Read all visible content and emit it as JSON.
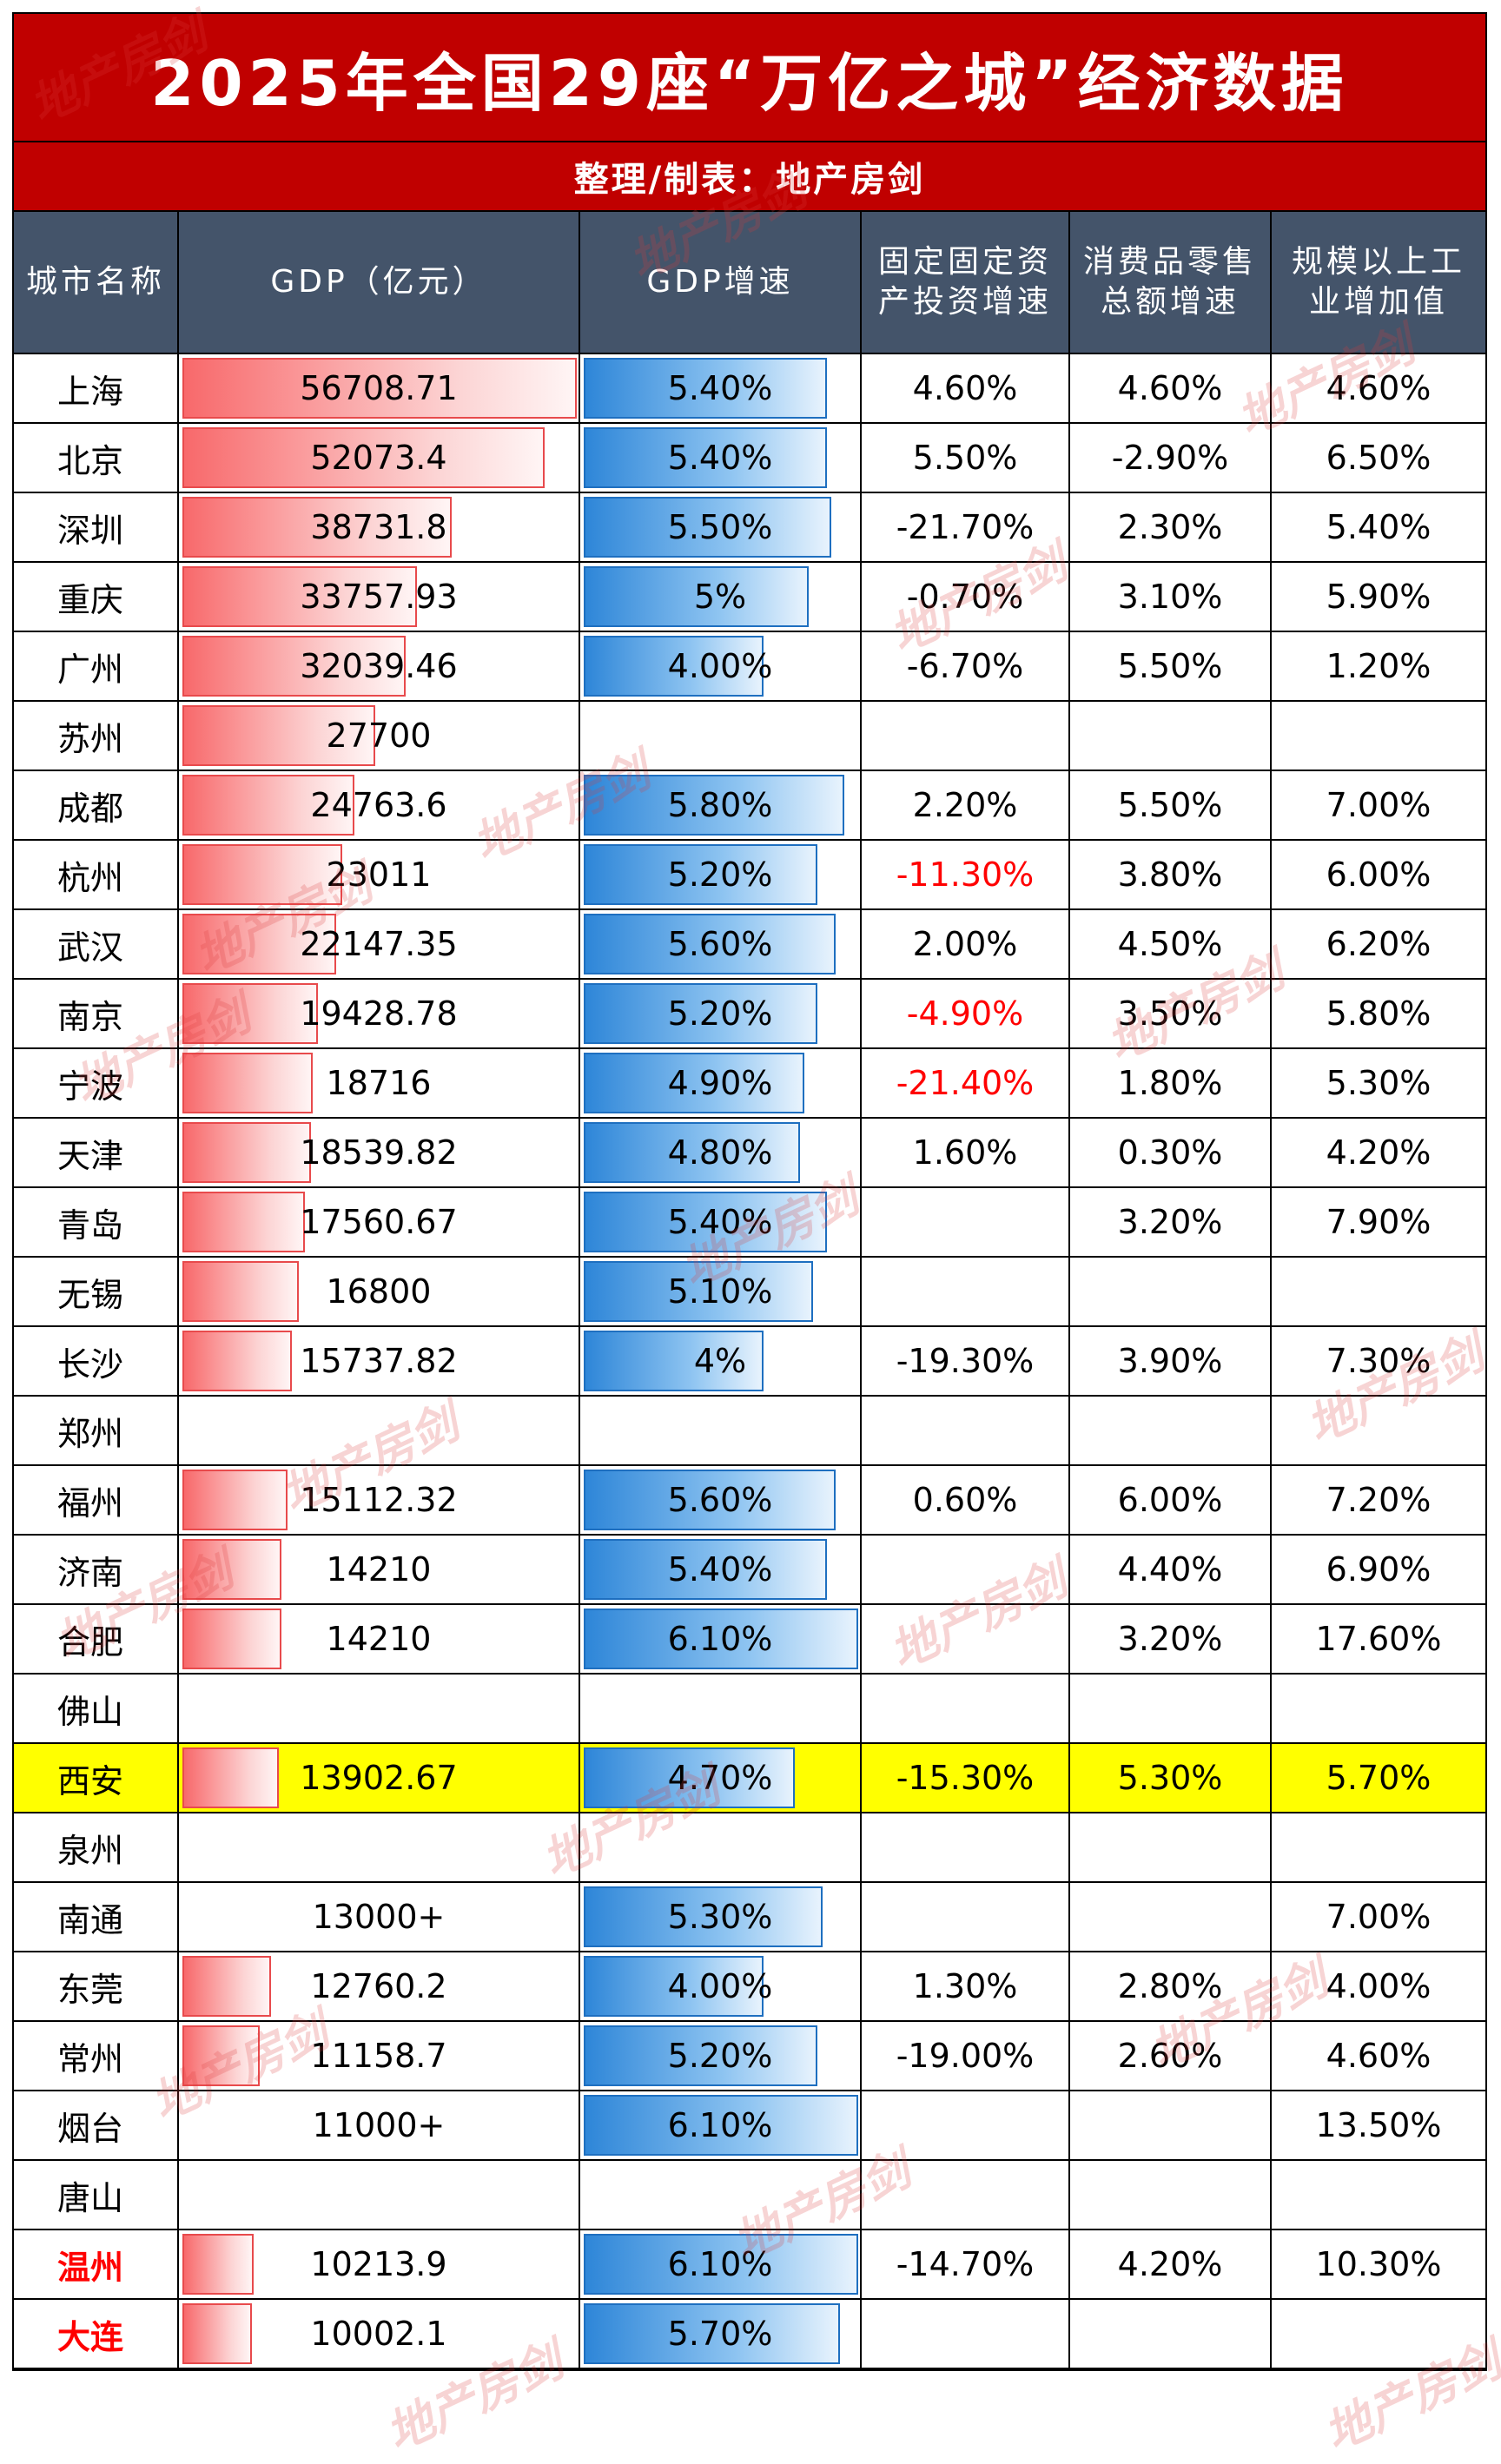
{
  "title": "2025年全国29座“万亿之城”经济数据",
  "subtitle": "整理/制表：地产房剑",
  "watermark": "地产房剑",
  "colors": {
    "title_bg": "#c00000",
    "header_bg": "#44546a",
    "highlight": "#ffff00",
    "gdp_bar": "#f8696b",
    "growth_bar": "#2e86d8",
    "negative_text": "#ff0000"
  },
  "headers": {
    "city": "城市名称",
    "gdp": "GDP（亿元）",
    "gdp_growth": "GDP增速",
    "fai_growth": "固定固定资产投资增速",
    "retail_growth": "消费品零售总额增速",
    "industry": "规模以上工业增加值"
  },
  "rows": [
    {
      "city": "上海",
      "gdp": "56708.71",
      "gdp_value": 56708.71,
      "growth": "5.40%",
      "growth_value": 5.4,
      "fai": "4.60%",
      "retail": "4.60%",
      "industry": "4.60%"
    },
    {
      "city": "北京",
      "gdp": "52073.4",
      "gdp_value": 52073.4,
      "growth": "5.40%",
      "growth_value": 5.4,
      "fai": "5.50%",
      "retail": "-2.90%",
      "industry": "6.50%"
    },
    {
      "city": "深圳",
      "gdp": "38731.8",
      "gdp_value": 38731.8,
      "growth": "5.50%",
      "growth_value": 5.5,
      "fai": "-21.70%",
      "retail": "2.30%",
      "industry": "5.40%"
    },
    {
      "city": "重庆",
      "gdp": "33757.93",
      "gdp_value": 33757.93,
      "growth": "5%",
      "growth_value": 5.0,
      "fai": "-0.70%",
      "retail": "3.10%",
      "industry": "5.90%"
    },
    {
      "city": "广州",
      "gdp": "32039.46",
      "gdp_value": 32039.46,
      "growth": "4.00%",
      "growth_value": 4.0,
      "fai": "-6.70%",
      "retail": "5.50%",
      "industry": "1.20%"
    },
    {
      "city": "苏州",
      "gdp": "27700",
      "gdp_value": 27700,
      "growth": "",
      "growth_value": null,
      "fai": "",
      "retail": "",
      "industry": ""
    },
    {
      "city": "成都",
      "gdp": "24763.6",
      "gdp_value": 24763.6,
      "growth": "5.80%",
      "growth_value": 5.8,
      "fai": "2.20%",
      "retail": "5.50%",
      "industry": "7.00%"
    },
    {
      "city": "杭州",
      "gdp": "23011",
      "gdp_value": 23011,
      "growth": "5.20%",
      "growth_value": 5.2,
      "fai": "-11.30%",
      "fai_red": true,
      "retail": "3.80%",
      "industry": "6.00%"
    },
    {
      "city": "武汉",
      "gdp": "22147.35",
      "gdp_value": 22147.35,
      "growth": "5.60%",
      "growth_value": 5.6,
      "fai": "2.00%",
      "retail": "4.50%",
      "industry": "6.20%"
    },
    {
      "city": "南京",
      "gdp": "19428.78",
      "gdp_value": 19428.78,
      "growth": "5.20%",
      "growth_value": 5.2,
      "fai": "-4.90%",
      "fai_red": true,
      "retail": "3.50%",
      "industry": "5.80%"
    },
    {
      "city": "宁波",
      "gdp": "18716",
      "gdp_value": 18716,
      "growth": "4.90%",
      "growth_value": 4.9,
      "fai": "-21.40%",
      "fai_red": true,
      "retail": "1.80%",
      "industry": "5.30%"
    },
    {
      "city": "天津",
      "gdp": "18539.82",
      "gdp_value": 18539.82,
      "growth": "4.80%",
      "growth_value": 4.8,
      "fai": "1.60%",
      "retail": "0.30%",
      "industry": "4.20%"
    },
    {
      "city": "青岛",
      "gdp": "17560.67",
      "gdp_value": 17560.67,
      "growth": "5.40%",
      "growth_value": 5.4,
      "fai": "",
      "retail": "3.20%",
      "industry": "7.90%"
    },
    {
      "city": "无锡",
      "gdp": "16800",
      "gdp_value": 16800,
      "growth": "5.10%",
      "growth_value": 5.1,
      "fai": "",
      "retail": "",
      "industry": ""
    },
    {
      "city": "长沙",
      "gdp": "15737.82",
      "gdp_value": 15737.82,
      "growth": "4%",
      "growth_value": 4.0,
      "fai": "-19.30%",
      "retail": "3.90%",
      "industry": "7.30%"
    },
    {
      "city": "郑州",
      "gdp": "",
      "gdp_value": null,
      "growth": "",
      "growth_value": null,
      "fai": "",
      "retail": "",
      "industry": ""
    },
    {
      "city": "福州",
      "gdp": "15112.32",
      "gdp_value": 15112.32,
      "growth": "5.60%",
      "growth_value": 5.6,
      "fai": "0.60%",
      "retail": "6.00%",
      "industry": "7.20%"
    },
    {
      "city": "济南",
      "gdp": "14210",
      "gdp_value": 14210,
      "growth": "5.40%",
      "growth_value": 5.4,
      "fai": "",
      "retail": "4.40%",
      "industry": "6.90%"
    },
    {
      "city": "合肥",
      "gdp": "14210",
      "gdp_value": 14210,
      "growth": "6.10%",
      "growth_value": 6.1,
      "fai": "",
      "retail": "3.20%",
      "industry": "17.60%"
    },
    {
      "city": "佛山",
      "gdp": "",
      "gdp_value": null,
      "growth": "",
      "growth_value": null,
      "fai": "",
      "retail": "",
      "industry": ""
    },
    {
      "city": "西安",
      "gdp": "13902.67",
      "gdp_value": 13902.67,
      "growth": "4.70%",
      "growth_value": 4.7,
      "fai": "-15.30%",
      "retail": "5.30%",
      "industry": "5.70%",
      "highlight": true
    },
    {
      "city": "泉州",
      "gdp": "",
      "gdp_value": null,
      "growth": "",
      "growth_value": null,
      "fai": "",
      "retail": "",
      "industry": ""
    },
    {
      "city": "南通",
      "gdp": "13000+",
      "gdp_value": null,
      "growth": "5.30%",
      "growth_value": 5.3,
      "fai": "",
      "retail": "",
      "industry": "7.00%"
    },
    {
      "city": "东莞",
      "gdp": "12760.2",
      "gdp_value": 12760.2,
      "growth": "4.00%",
      "growth_value": 4.0,
      "fai": "1.30%",
      "retail": "2.80%",
      "industry": "4.00%"
    },
    {
      "city": "常州",
      "gdp": "11158.7",
      "gdp_value": 11158.7,
      "growth": "5.20%",
      "growth_value": 5.2,
      "fai": "-19.00%",
      "retail": "2.60%",
      "industry": "4.60%"
    },
    {
      "city": "烟台",
      "gdp": "11000+",
      "gdp_value": null,
      "growth": "6.10%",
      "growth_value": 6.1,
      "fai": "",
      "retail": "",
      "industry": "13.50%"
    },
    {
      "city": "唐山",
      "gdp": "",
      "gdp_value": null,
      "growth": "",
      "growth_value": null,
      "fai": "",
      "retail": "",
      "industry": ""
    },
    {
      "city": "温州",
      "gdp": "10213.9",
      "gdp_value": 10213.9,
      "growth": "6.10%",
      "growth_value": 6.1,
      "fai": "-14.70%",
      "retail": "4.20%",
      "industry": "10.30%",
      "city_red": true
    },
    {
      "city": "大连",
      "gdp": "10002.1",
      "gdp_value": 10002.1,
      "growth": "5.70%",
      "growth_value": 5.7,
      "fai": "",
      "retail": "",
      "industry": "",
      "city_red": true
    }
  ]
}
